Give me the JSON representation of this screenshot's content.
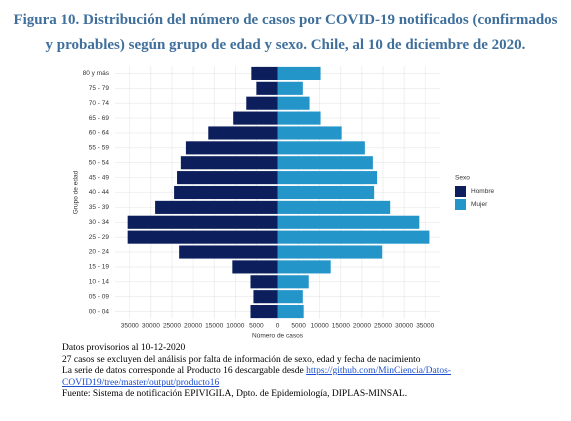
{
  "chart_data": {
    "type": "pyramid",
    "title": "Figura 10. Distribución del número de casos por COVID-19 notificados (confirmados y probables) según grupo de edad y sexo. Chile, al 10 de diciembre de 2020.",
    "x_label": "Número de casos",
    "y_label": "Grupo de edad",
    "legend_title": "Sexo",
    "categories": [
      "00 - 04",
      "05 - 09",
      "10 - 14",
      "15 - 19",
      "20 - 24",
      "25 - 29",
      "30 - 34",
      "35 - 39",
      "40 - 44",
      "45 - 49",
      "50 - 54",
      "55 - 59",
      "60 - 64",
      "65 - 69",
      "70 - 74",
      "75 - 79",
      "80 y más"
    ],
    "series": [
      {
        "name": "Hombre",
        "color": "#0c1f5c",
        "values": [
          -6400,
          -5700,
          -6400,
          -10700,
          -23300,
          -35500,
          -35500,
          -29000,
          -24500,
          -23800,
          -22900,
          -21700,
          -16400,
          -10500,
          -7400,
          -5000,
          -6200
        ]
      },
      {
        "name": "Mujer",
        "color": "#2395c9",
        "values": [
          6200,
          6000,
          7400,
          12600,
          24800,
          36000,
          33600,
          26700,
          22900,
          23600,
          22600,
          20700,
          15200,
          10200,
          7600,
          6000,
          10200
        ]
      }
    ],
    "xlim": [
      -38500,
      38500
    ],
    "xticks": [
      {
        "value": -35000,
        "label": "35000"
      },
      {
        "value": -30000,
        "label": "30000"
      },
      {
        "value": -25000,
        "label": "25000"
      },
      {
        "value": -20000,
        "label": "20000"
      },
      {
        "value": -15000,
        "label": "15000"
      },
      {
        "value": -10000,
        "label": "10000"
      },
      {
        "value": -5000,
        "label": "5000"
      },
      0,
      5000,
      10000,
      15000,
      20000,
      25000,
      30000,
      35000
    ],
    "grid": true
  },
  "notes": [
    "Datos provisorios al 10-12-2020",
    "27 casos se excluyen del análisis por falta de información de sexo, edad y fecha de nacimiento"
  ],
  "source_note": {
    "text": "La serie de datos corresponde al Producto 16 descargable desde",
    "link": "https://github.com/MinCiencia/Datos-COVID19/tree/master/output/producto16"
  },
  "footer": "Fuente: Sistema de notificación EPIVIGILA, Dpto. de Epidemiología, DIPLAS-MINSAL."
}
